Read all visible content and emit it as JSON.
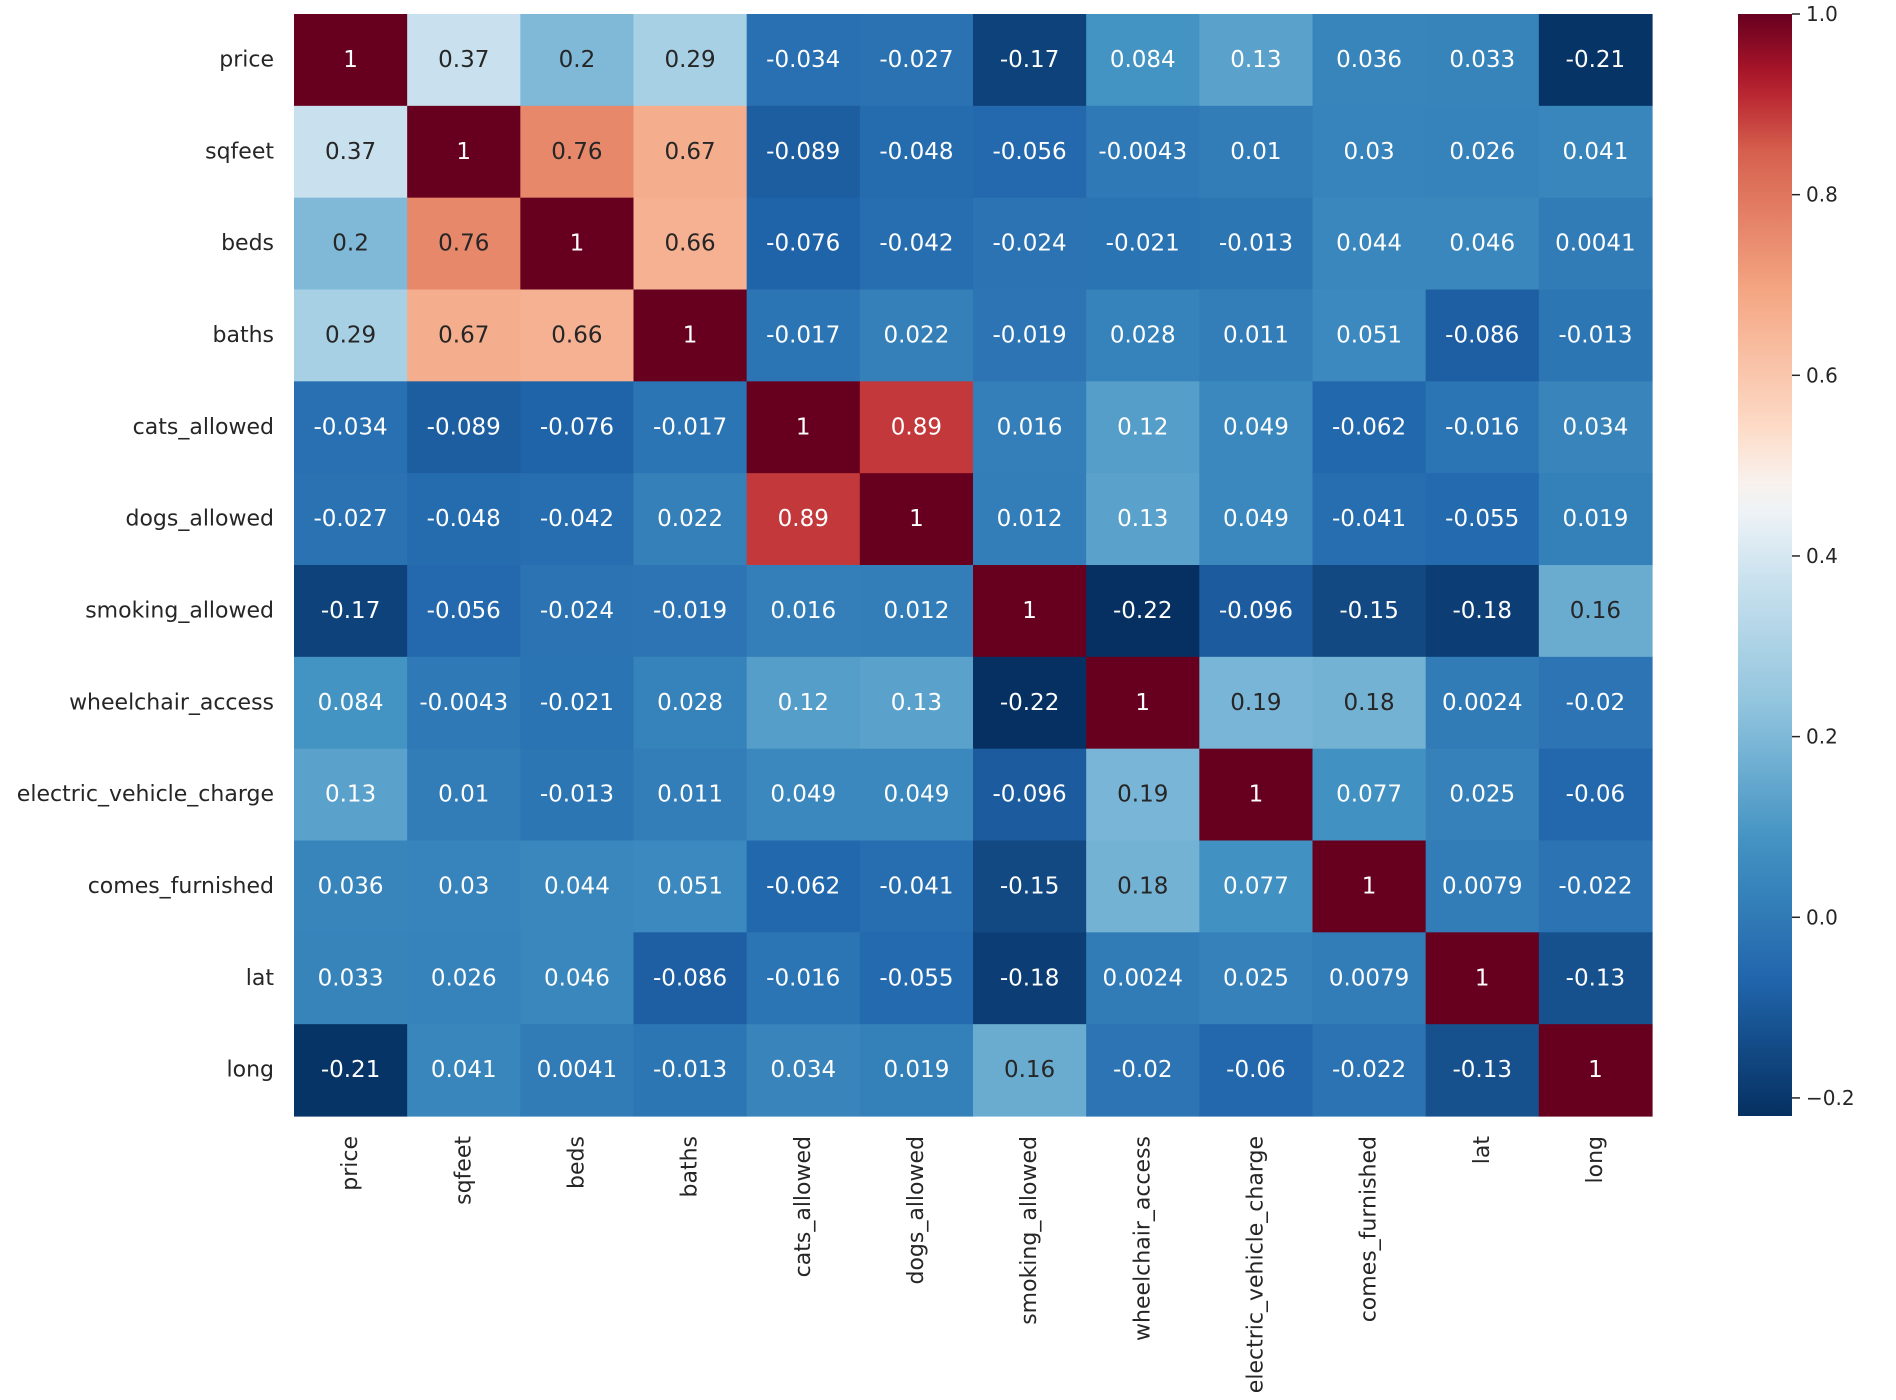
{
  "chart_data": {
    "type": "heatmap",
    "title": "",
    "xlabel": "",
    "ylabel": "",
    "variables": [
      "price",
      "sqfeet",
      "beds",
      "baths",
      "cats_allowed",
      "dogs_allowed",
      "smoking_allowed",
      "wheelchair_access",
      "electric_vehicle_charge",
      "comes_furnished",
      "lat",
      "long"
    ],
    "matrix": [
      [
        1,
        0.37,
        0.2,
        0.29,
        -0.034,
        -0.027,
        -0.17,
        0.084,
        0.13,
        0.036,
        0.033,
        -0.21
      ],
      [
        0.37,
        1,
        0.76,
        0.67,
        -0.089,
        -0.048,
        -0.056,
        -0.0043,
        0.01,
        0.03,
        0.026,
        0.041
      ],
      [
        0.2,
        0.76,
        1,
        0.66,
        -0.076,
        -0.042,
        -0.024,
        -0.021,
        -0.013,
        0.044,
        0.046,
        0.0041
      ],
      [
        0.29,
        0.67,
        0.66,
        1,
        -0.017,
        0.022,
        -0.019,
        0.028,
        0.011,
        0.051,
        -0.086,
        -0.013
      ],
      [
        -0.034,
        -0.089,
        -0.076,
        -0.017,
        1,
        0.89,
        0.016,
        0.12,
        0.049,
        -0.062,
        -0.016,
        0.034
      ],
      [
        -0.027,
        -0.048,
        -0.042,
        0.022,
        0.89,
        1,
        0.012,
        0.13,
        0.049,
        -0.041,
        -0.055,
        0.019
      ],
      [
        -0.17,
        -0.056,
        -0.024,
        -0.019,
        0.016,
        0.012,
        1,
        -0.22,
        -0.096,
        -0.15,
        -0.18,
        0.16
      ],
      [
        0.084,
        -0.0043,
        -0.021,
        0.028,
        0.12,
        0.13,
        -0.22,
        1,
        0.19,
        0.18,
        0.0024,
        -0.02
      ],
      [
        0.13,
        0.01,
        -0.013,
        0.011,
        0.049,
        0.049,
        -0.096,
        0.19,
        1,
        0.077,
        0.025,
        -0.06
      ],
      [
        0.036,
        0.03,
        0.044,
        0.051,
        -0.062,
        -0.041,
        -0.15,
        0.18,
        0.077,
        1,
        0.0079,
        -0.022
      ],
      [
        0.033,
        0.026,
        0.046,
        -0.086,
        -0.016,
        -0.055,
        -0.18,
        0.0024,
        0.025,
        0.0079,
        1,
        -0.13
      ],
      [
        -0.21,
        0.041,
        0.0041,
        -0.013,
        0.034,
        0.019,
        0.16,
        -0.02,
        -0.06,
        -0.022,
        -0.13,
        1
      ]
    ],
    "colorbar": {
      "colormap": "RdBu_r",
      "range": [
        -0.22,
        1.0
      ],
      "ticks": [
        -0.2,
        0.0,
        0.2,
        0.4,
        0.6,
        0.8,
        1.0
      ],
      "tick_labels": [
        "−0.2",
        "0.0",
        "0.2",
        "0.4",
        "0.6",
        "0.8",
        "1.0"
      ]
    },
    "annotated": true,
    "grid": false,
    "legend": "colorbar-right"
  }
}
